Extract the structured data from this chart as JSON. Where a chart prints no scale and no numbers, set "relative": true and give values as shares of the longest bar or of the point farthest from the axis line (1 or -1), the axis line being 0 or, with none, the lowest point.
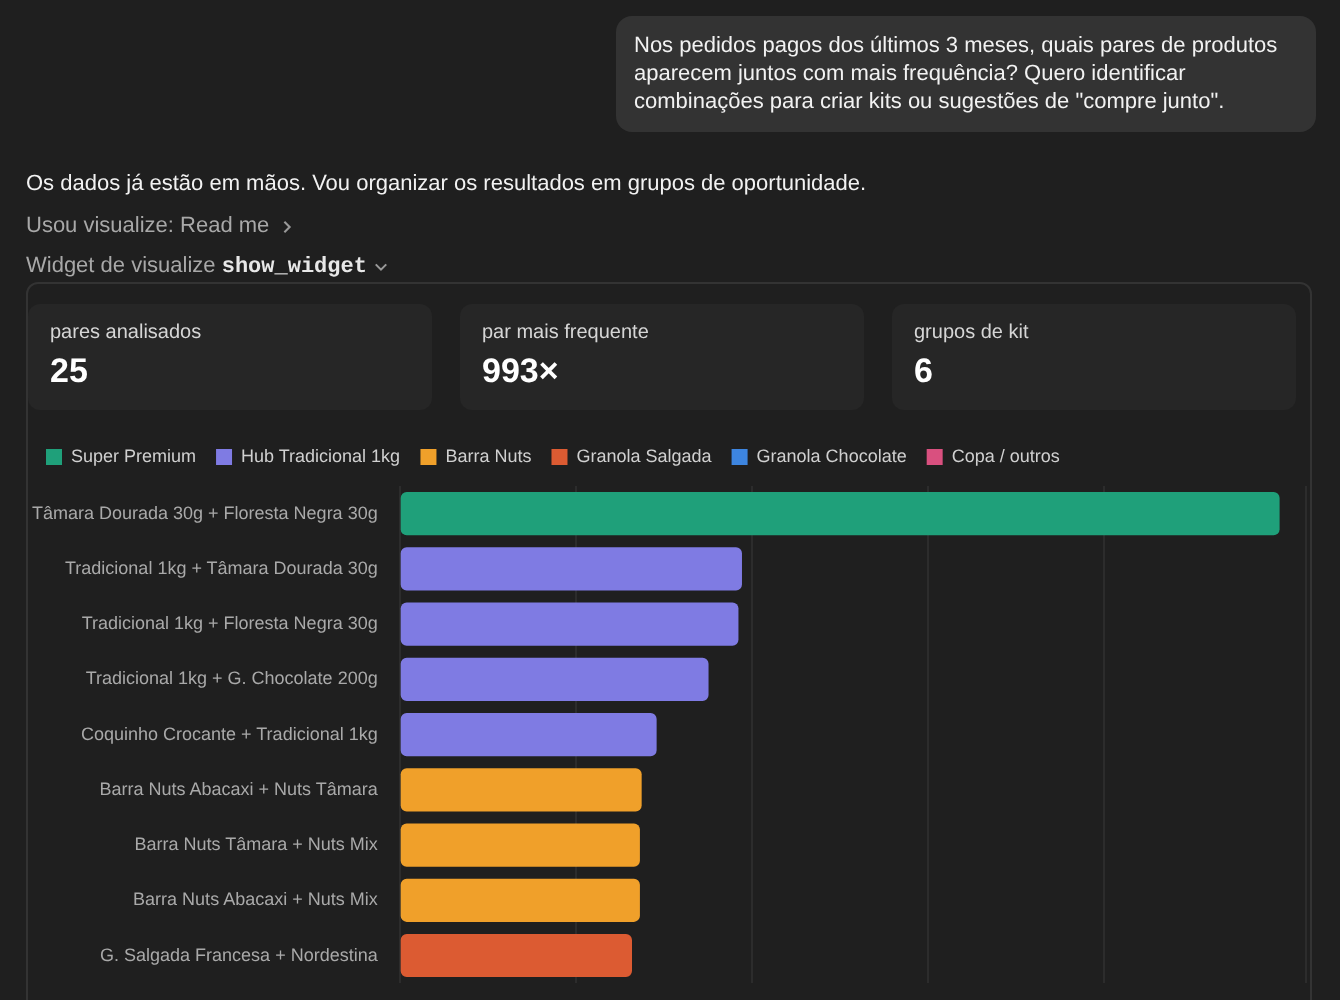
{
  "chart_data": [
    {
      "type": "other",
      "annotations": [
        "Nos pedidos pagos dos últimos 3 meses, quais pares de produtos aparecem juntos com mais frequência? Quero identificar combinações para criar kits ou sugestões de \"compre junto\".",
        "Os dados já estão em mãos. Vou organizar os resultados em grupos de oportunidade.",
        "Usou visualize: Read me",
        "Widget de visualize",
        "show_widget",
        "pares analisados",
        "25",
        "par mais frequente",
        "993×",
        "grupos de kit",
        "6"
      ]
    },
    {
      "type": "bar",
      "orientation": "horizontal",
      "relative": true,
      "grid": "x",
      "legend": "top left",
      "tick_labels": "y",
      "categories": [
        "Tâmara Dourada 30g + Floresta Negra 30g",
        "Tradicional 1kg + Tâmara Dourada 30g",
        "Tradicional 1kg + Floresta Negra 30g",
        "Tradicional 1kg + G. Chocolate 200g",
        "Coquinho Crocante + Tradicional 1kg",
        "Barra Nuts Abacaxi + Nuts Tâmara",
        "Barra Nuts Tâmara + Nuts Mix",
        "Barra Nuts Abacaxi + Nuts Mix",
        "G. Salgada Francesa + Nordestina"
      ],
      "series": [
        {
          "name": "Super Premium",
          "color": "#1fa07a",
          "values": [
            1,
            null,
            null,
            null,
            null,
            null,
            null,
            null,
            null
          ]
        },
        {
          "name": "Hub Tradicional 1kg",
          "color": "#7f7be3",
          "values": [
            null,
            0.389,
            0.385,
            0.351,
            0.292,
            null,
            null,
            null,
            null
          ]
        },
        {
          "name": "Barra Nuts",
          "color": "#f0a02a",
          "values": [
            null,
            null,
            null,
            null,
            null,
            0.275,
            0.273,
            0.273,
            null
          ]
        },
        {
          "name": "Granola Salgada",
          "color": "#dc5b32",
          "values": [
            null,
            null,
            null,
            null,
            null,
            null,
            null,
            null,
            0.264
          ]
        },
        {
          "name": "Granola Chocolate",
          "color": "#3d85e0",
          "values": [
            null,
            null,
            null,
            null,
            null,
            null,
            null,
            null,
            null
          ]
        },
        {
          "name": "Copa / outros",
          "color": "#d9507f",
          "values": [
            null,
            null,
            null,
            null,
            null,
            null,
            null,
            null,
            null
          ]
        }
      ]
    }
  ]
}
